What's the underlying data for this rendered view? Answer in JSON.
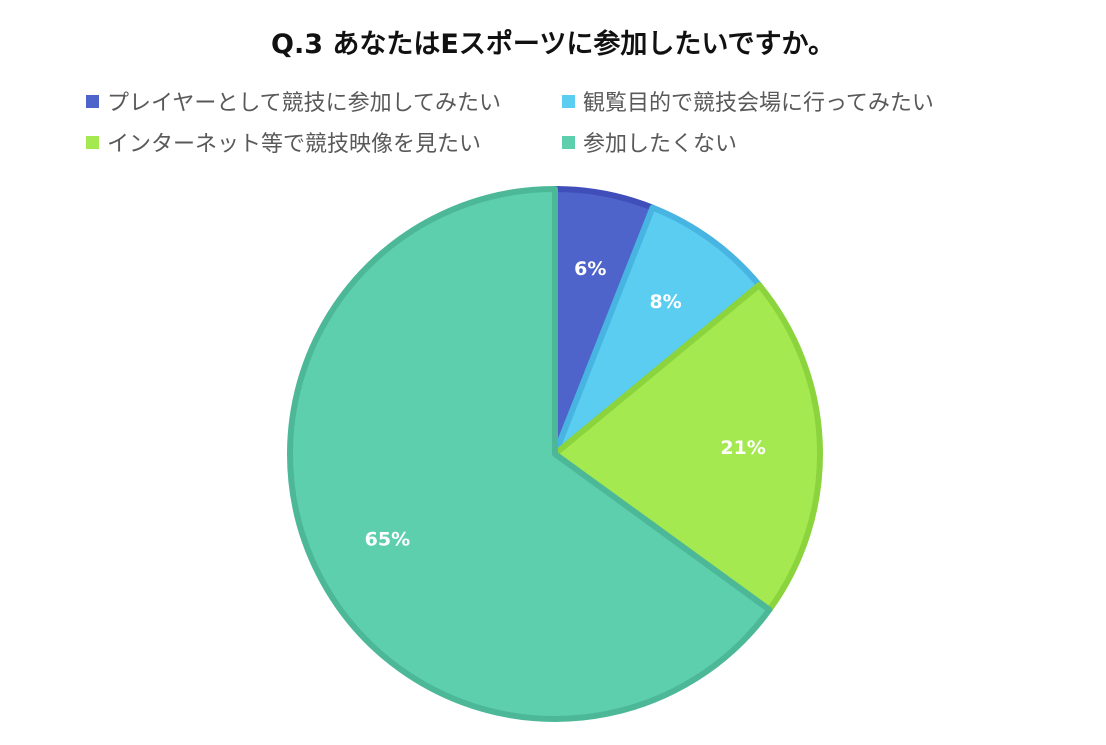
{
  "chart_data": {
    "type": "pie",
    "title": "Q.3 あなたはEスポーツに参加したいですか。",
    "categories": [
      "プレイヤーとして競技に参加してみたい",
      "観覧目的で競技会場に行ってみたい",
      "インターネット等で競技映像を見たい",
      "参加したくない"
    ],
    "values": [
      6,
      8,
      21,
      65
    ],
    "data_labels": [
      "6%",
      "8%",
      "21%",
      "65%"
    ],
    "colors": [
      "#4F64CB",
      "#5ACDF0",
      "#A5E951",
      "#5DCFAD"
    ],
    "edge_colors": [
      "#3F4EB8",
      "#47B4E2",
      "#8CD43E",
      "#4CB897"
    ],
    "legend_position": "top"
  }
}
